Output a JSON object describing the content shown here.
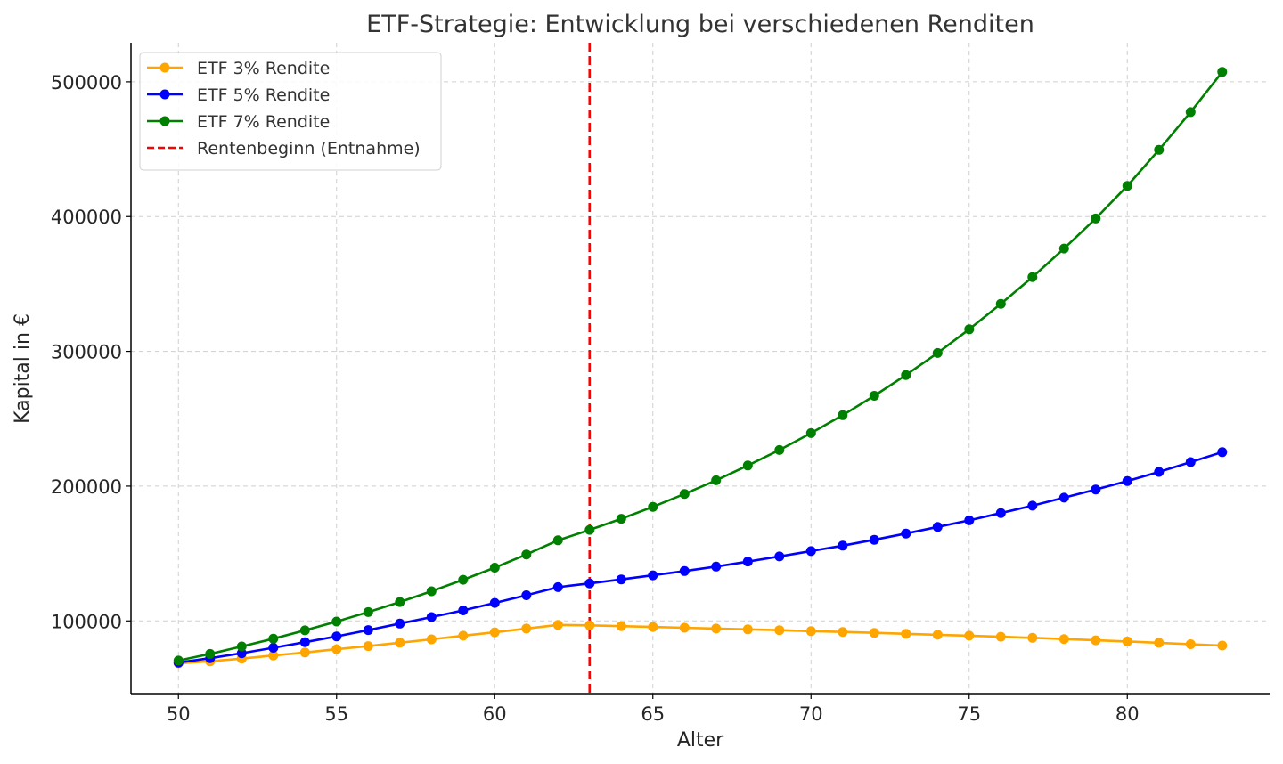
{
  "chart_data": {
    "type": "line",
    "title": "ETF-Strategie: Entwicklung bei verschiedenen Renditen",
    "xlabel": "Alter",
    "ylabel": "Kapital in €",
    "xlim": [
      48.5,
      84.5
    ],
    "ylim": [
      46000,
      529000
    ],
    "xticks": [
      50,
      55,
      60,
      65,
      70,
      75,
      80
    ],
    "yticks": [
      100000,
      200000,
      300000,
      400000,
      500000
    ],
    "grid": true,
    "legend_position": "top-left",
    "x": [
      50,
      51,
      52,
      53,
      54,
      55,
      56,
      57,
      58,
      59,
      60,
      61,
      62,
      63,
      64,
      65,
      66,
      67,
      68,
      69,
      70,
      71,
      72,
      73,
      74,
      75,
      76,
      77,
      78,
      79,
      80,
      81,
      82,
      83
    ],
    "series": [
      {
        "name": "ETF 3% Rendite",
        "color": "#ffa500",
        "values": [
          68500,
          70000,
          72000,
          74300,
          76500,
          79000,
          81300,
          83800,
          86300,
          89000,
          91500,
          94300,
          97000,
          96700,
          96100,
          95500,
          94900,
          94300,
          93700,
          93100,
          92400,
          91800,
          91100,
          90400,
          89700,
          89000,
          88200,
          87400,
          86500,
          85600,
          84700,
          83700,
          82700,
          81700
        ]
      },
      {
        "name": "ETF 5% Rendite",
        "color": "#0000ff",
        "values": [
          69000,
          72300,
          76000,
          80000,
          84200,
          88500,
          93200,
          98000,
          102800,
          107800,
          113300,
          119000,
          125000,
          127800,
          130800,
          133800,
          137000,
          140300,
          144000,
          147800,
          151800,
          155800,
          160200,
          164800,
          169700,
          174600,
          180000,
          185500,
          191400,
          197500,
          203800,
          210500,
          217800,
          225200
        ]
      },
      {
        "name": "ETF 7% Rendite",
        "color": "#008000",
        "values": [
          70500,
          75500,
          81000,
          86800,
          93000,
          99500,
          106500,
          114000,
          122000,
          130500,
          139500,
          149300,
          159800,
          167500,
          175800,
          184600,
          194200,
          204300,
          215300,
          226800,
          239300,
          252600,
          267000,
          282400,
          298800,
          316400,
          335300,
          355100,
          376300,
          398600,
          422800,
          449500,
          477500,
          507300
        ]
      }
    ],
    "vline": {
      "x": 63,
      "name": "Rentenbeginn (Entnahme)",
      "color": "#ff0000"
    }
  }
}
